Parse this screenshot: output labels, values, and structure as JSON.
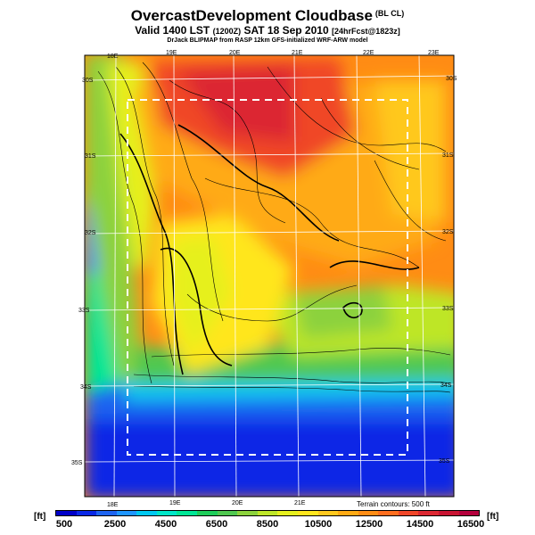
{
  "header": {
    "title": "OvercastDevelopment Cloudbase",
    "title_tag": "(BL CL)",
    "valid_prefix": "Valid 1400 LST",
    "valid_zulu": "(1200Z)",
    "valid_date": "SAT 18 Sep 2010",
    "forecast": "[24hrFcst@1823z]",
    "credit": "DrJack BLIPMAP from RASP 12km GFS-initialized WRF-ARW model"
  },
  "map": {
    "lon_labels_top": [
      "18E",
      "19E",
      "20E",
      "21E",
      "22E",
      "23E"
    ],
    "lon_labels_bottom": [
      "18E",
      "19E",
      "20E",
      "21E"
    ],
    "lat_labels_left": [
      "30S",
      "31S",
      "32S",
      "33S",
      "34S",
      "35S"
    ],
    "lat_labels_right": [
      "30S",
      "31S",
      "32S",
      "33S",
      "34S",
      "35S"
    ],
    "terrain_note": "Terrain contours: 500 ft"
  },
  "legend": {
    "unit_left": "[ft]",
    "unit_right": "[ft]",
    "ticks": [
      "500",
      "2500",
      "4500",
      "6500",
      "8500",
      "10500",
      "12500",
      "14500",
      "16500"
    ],
    "colors": [
      "#0000c8",
      "#0a28e6",
      "#1e64f0",
      "#1e96ff",
      "#00c8f0",
      "#00e6c8",
      "#00e696",
      "#1ecd5a",
      "#50c850",
      "#8cd23c",
      "#bee628",
      "#e6f01e",
      "#ffe61e",
      "#ffc81e",
      "#ffaa14",
      "#ff8c14",
      "#ff6e1e",
      "#f04628",
      "#dc2832",
      "#c81432",
      "#b4003c"
    ]
  }
}
